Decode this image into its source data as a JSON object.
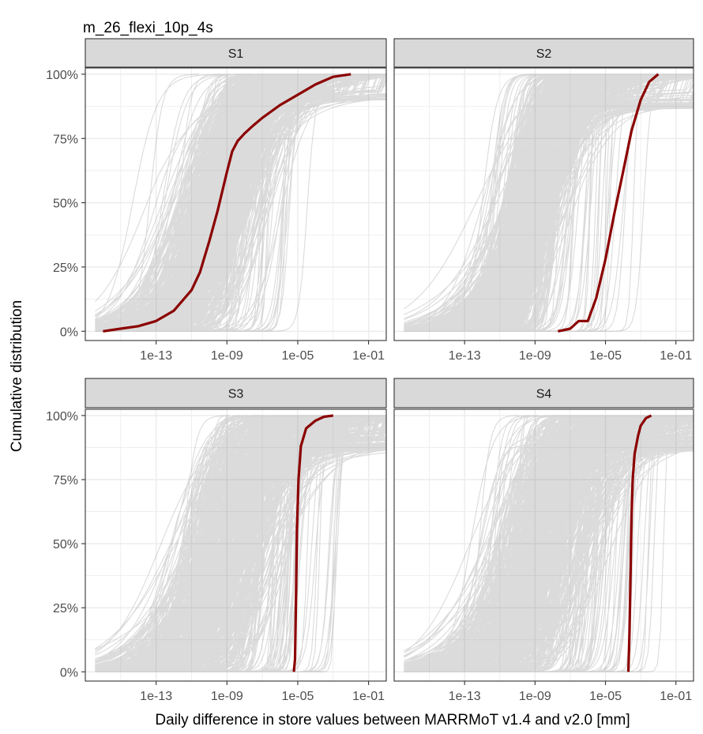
{
  "title": "m_26_flexi_10p_4s",
  "xlabel": "Daily difference in store values between MARRMoT v1.4 and v2.0 [mm]",
  "ylabel": "Cumulative distribution",
  "colors": {
    "highlight": "#8b0000",
    "background_lines": "#7f7f7f",
    "strip_fill": "#d9d9d9",
    "grid": "#ebebeb"
  },
  "chart_data": {
    "type": "line",
    "x_scale": "log10",
    "x_ticks": [
      "1e-13",
      "1e-09",
      "1e-05",
      "1e-01"
    ],
    "x_tick_values": [
      1e-13,
      1e-09,
      1e-05,
      0.1
    ],
    "xlim": [
      1e-17,
      1
    ],
    "y_ticks": [
      "0%",
      "25%",
      "50%",
      "75%",
      "100%"
    ],
    "y_tick_values": [
      0,
      0.25,
      0.5,
      0.75,
      1.0
    ],
    "ylim": [
      0,
      1
    ],
    "grid": true,
    "background_series_count": 600,
    "panels": [
      {
        "label": "S1",
        "highlight_series": {
          "x": [
            1e-16,
            1e-15,
            1e-14,
            1e-13,
            1e-12,
            1e-11,
            3e-11,
            1e-10,
            3e-10,
            1e-09,
            2e-09,
            4e-09,
            1e-08,
            3e-08,
            1e-07,
            1e-06,
            1e-05,
            0.0001,
            0.001,
            0.01
          ],
          "y": [
            0.0,
            0.01,
            0.02,
            0.04,
            0.08,
            0.16,
            0.23,
            0.35,
            0.47,
            0.62,
            0.7,
            0.74,
            0.77,
            0.8,
            0.83,
            0.88,
            0.92,
            0.96,
            0.99,
            1.0
          ]
        }
      },
      {
        "label": "S2",
        "highlight_series": {
          "x": [
            2e-08,
            1e-07,
            3e-07,
            1e-06,
            3e-06,
            1e-05,
            3e-05,
            0.0001,
            0.0003,
            0.001,
            0.003,
            0.01
          ],
          "y": [
            0.0,
            0.01,
            0.04,
            0.04,
            0.13,
            0.28,
            0.45,
            0.62,
            0.78,
            0.9,
            0.97,
            1.0
          ]
        }
      },
      {
        "label": "S3",
        "highlight_series": {
          "x": [
            6e-06,
            7e-06,
            8e-06,
            9e-06,
            1.1e-05,
            1.5e-05,
            3e-05,
            0.0001,
            0.0003,
            0.001
          ],
          "y": [
            0.0,
            0.05,
            0.3,
            0.55,
            0.75,
            0.88,
            0.95,
            0.98,
            0.995,
            1.0
          ]
        }
      },
      {
        "label": "S4",
        "highlight_series": {
          "x": [
            0.0002,
            0.00023,
            0.00027,
            0.0003,
            0.00035,
            0.00045,
            0.0007,
            0.001,
            0.002,
            0.004
          ],
          "y": [
            0.0,
            0.15,
            0.4,
            0.6,
            0.75,
            0.85,
            0.92,
            0.96,
            0.99,
            1.0
          ]
        }
      }
    ]
  }
}
